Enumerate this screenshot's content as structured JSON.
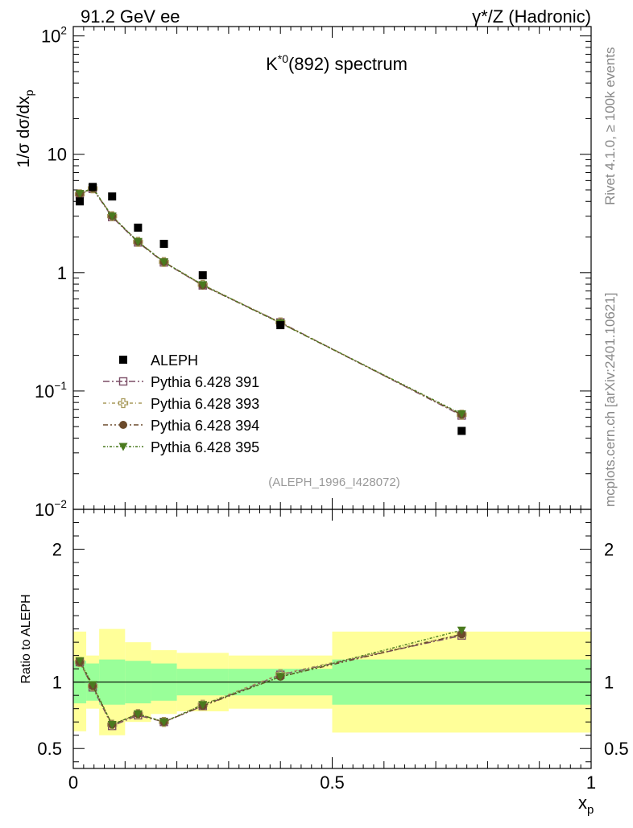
{
  "header": {
    "left": "91.2 GeV ee",
    "right": "γ*/Z (Hadronic)"
  },
  "side_labels": {
    "rivet": "Rivet 4.1.0, ≥ 100k events",
    "mcplots": "mcplots.cern.ch [arXiv:2401.10621]"
  },
  "chart_data": [
    {
      "type": "scatter",
      "panel": "main",
      "title": "K*0(892) spectrum",
      "ylabel": "1/σ dσ/dxp",
      "yscale": "log",
      "ylim": [
        0.01,
        120
      ],
      "xlim": [
        0,
        1
      ],
      "ytick_labels": [
        "10−2",
        "10−1",
        "1",
        "10",
        "102"
      ],
      "analysis_tag": "(ALEPH_1996_I428072)",
      "legend_position": "middle-left",
      "x": [
        0.0125,
        0.0375,
        0.075,
        0.125,
        0.175,
        0.25,
        0.4,
        0.75
      ],
      "series": [
        {
          "name": "ALEPH",
          "marker": "square",
          "color": "#000000",
          "values": [
            4.0,
            5.3,
            4.4,
            2.4,
            1.75,
            0.95,
            0.36,
            0.046
          ]
        },
        {
          "name": "Pythia 6.428 391",
          "marker": "open-square",
          "color": "#7b4d66",
          "values": [
            4.6,
            5.1,
            2.95,
            1.8,
            1.22,
            0.78,
            0.38,
            0.062
          ]
        },
        {
          "name": "Pythia 6.428 393",
          "marker": "open-cross",
          "color": "#a89a5c",
          "values": [
            4.6,
            5.15,
            3.0,
            1.82,
            1.23,
            0.79,
            0.38,
            0.063
          ]
        },
        {
          "name": "Pythia 6.428 394",
          "marker": "circle",
          "color": "#6b4a2b",
          "values": [
            4.6,
            5.15,
            3.0,
            1.82,
            1.23,
            0.78,
            0.375,
            0.063
          ]
        },
        {
          "name": "Pythia 6.428 395",
          "marker": "triangle-down",
          "color": "#4a7a1e",
          "values": [
            4.65,
            5.2,
            3.0,
            1.83,
            1.23,
            0.79,
            0.375,
            0.064
          ]
        }
      ]
    },
    {
      "type": "scatter",
      "panel": "ratio",
      "ylabel": "Ratio to ALEPH",
      "xlabel": "xp",
      "ylim": [
        0.35,
        2.3
      ],
      "xlim": [
        0,
        1
      ],
      "ytick_labels": [
        "0.5",
        "1",
        "2"
      ],
      "xtick_labels": [
        "0",
        "0.5",
        "1"
      ],
      "bins": [
        [
          0,
          0.025
        ],
        [
          0.025,
          0.05
        ],
        [
          0.05,
          0.1
        ],
        [
          0.1,
          0.15
        ],
        [
          0.15,
          0.2
        ],
        [
          0.2,
          0.3
        ],
        [
          0.3,
          0.5
        ],
        [
          0.5,
          1.0
        ]
      ],
      "band_stat": [
        [
          0.84,
          1.16
        ],
        [
          0.86,
          1.14
        ],
        [
          0.83,
          1.17
        ],
        [
          0.84,
          1.16
        ],
        [
          0.86,
          1.14
        ],
        [
          0.9,
          1.1
        ],
        [
          0.9,
          1.1
        ],
        [
          0.83,
          1.17
        ]
      ],
      "band_total": [
        [
          0.63,
          1.38
        ],
        [
          0.8,
          1.2
        ],
        [
          0.6,
          1.4
        ],
        [
          0.7,
          1.3
        ],
        [
          0.76,
          1.24
        ],
        [
          0.78,
          1.22
        ],
        [
          0.8,
          1.2
        ],
        [
          0.62,
          1.38
        ]
      ],
      "x": [
        0.0125,
        0.0375,
        0.075,
        0.125,
        0.175,
        0.25,
        0.4,
        0.75
      ],
      "series": [
        {
          "name": "Pythia 6.428 391",
          "color": "#7b4d66",
          "values": [
            1.15,
            0.96,
            0.67,
            0.75,
            0.7,
            0.82,
            1.055,
            1.35
          ]
        },
        {
          "name": "Pythia 6.428 393",
          "color": "#a89a5c",
          "values": [
            1.15,
            0.97,
            0.68,
            0.76,
            0.7,
            0.83,
            1.06,
            1.36
          ]
        },
        {
          "name": "Pythia 6.428 394",
          "color": "#6b4a2b",
          "values": [
            1.15,
            0.97,
            0.68,
            0.76,
            0.7,
            0.82,
            1.04,
            1.36
          ]
        },
        {
          "name": "Pythia 6.428 395",
          "color": "#4a7a1e",
          "values": [
            1.16,
            0.98,
            0.68,
            0.76,
            0.7,
            0.83,
            1.04,
            1.39
          ]
        }
      ]
    }
  ],
  "colors": {
    "band_total": "#ffff99",
    "band_stat": "#99ff99"
  }
}
